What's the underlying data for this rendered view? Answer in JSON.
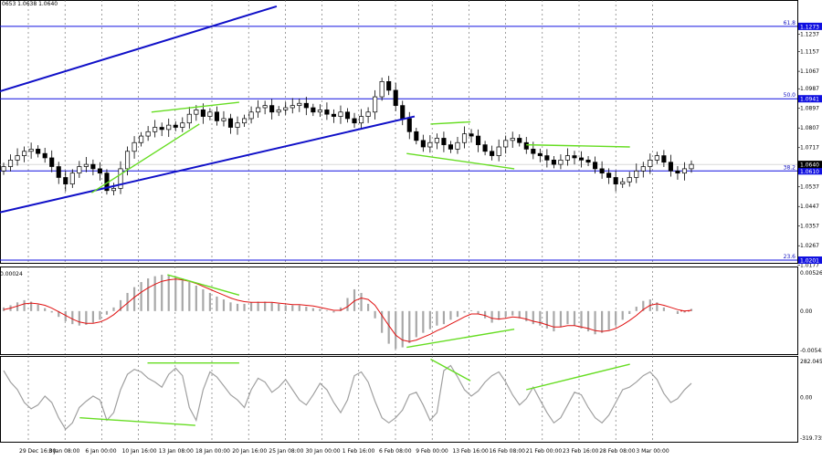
{
  "ohlc_header": "0653 1.0638 1.0640",
  "chart_data": [
    {
      "type": "candlestick",
      "panel": "price",
      "ylim": [
        1.0201,
        1.1327
      ],
      "price_ticks": [
        "1.1237",
        "1.1157",
        "1.1067",
        "1.0987",
        "1.0897",
        "1.0807",
        "1.0717",
        "1.0627",
        "1.0537",
        "1.0447",
        "1.0357",
        "1.0267",
        "1.0177"
      ],
      "price_tick_values": [
        1.1237,
        1.1157,
        1.1067,
        1.0987,
        1.0897,
        1.0807,
        1.0717,
        1.0627,
        1.0537,
        1.0447,
        1.0357,
        1.0267,
        1.0177
      ],
      "fib_levels": [
        {
          "label": "61.8",
          "price_label": "1.1273",
          "value": 1.1273
        },
        {
          "label": "50.0",
          "price_label": "1.0941",
          "value": 1.0941
        },
        {
          "label": "38.2",
          "price_label": "1.0610",
          "value": 1.061
        },
        {
          "label": "23.6",
          "price_label": "1.0201",
          "value": 1.0201
        }
      ],
      "current_price": {
        "label": "1.0640",
        "value": 1.064
      },
      "closes": [
        1.063,
        1.066,
        1.068,
        1.07,
        1.071,
        1.069,
        1.067,
        1.063,
        1.058,
        1.055,
        1.06,
        1.063,
        1.064,
        1.062,
        1.06,
        1.052,
        1.053,
        1.062,
        1.07,
        1.074,
        1.077,
        1.079,
        1.081,
        1.08,
        1.082,
        1.081,
        1.083,
        1.087,
        1.089,
        1.086,
        1.088,
        1.084,
        1.085,
        1.081,
        1.083,
        1.085,
        1.088,
        1.09,
        1.091,
        1.088,
        1.089,
        1.09,
        1.091,
        1.092,
        1.09,
        1.088,
        1.089,
        1.087,
        1.086,
        1.088,
        1.085,
        1.083,
        1.086,
        1.088,
        1.095,
        1.102,
        1.098,
        1.091,
        1.085,
        1.079,
        1.075,
        1.072,
        1.074,
        1.076,
        1.073,
        1.071,
        1.074,
        1.078,
        1.077,
        1.073,
        1.07,
        1.068,
        1.072,
        1.075,
        1.076,
        1.074,
        1.071,
        1.069,
        1.068,
        1.066,
        1.064,
        1.066,
        1.068,
        1.067,
        1.066,
        1.065,
        1.062,
        1.06,
        1.058,
        1.055,
        1.056,
        1.058,
        1.061,
        1.063,
        1.066,
        1.068,
        1.065,
        1.061,
        1.06,
        1.062,
        1.064
      ],
      "trend_channel": {
        "upper": [
          [
            0.0,
            1.0975
          ],
          [
            0.347,
            1.1365
          ]
        ],
        "lower": [
          [
            0.0,
            1.042
          ],
          [
            0.52,
            1.086
          ]
        ]
      },
      "divergence_segments": [
        [
          [
            0.19,
            1.088
          ],
          [
            0.3,
            1.0925
          ]
        ],
        [
          [
            0.115,
            1.051
          ],
          [
            0.25,
            1.0825
          ]
        ],
        [
          [
            0.54,
            1.0825
          ],
          [
            0.59,
            1.0835
          ]
        ],
        [
          [
            0.51,
            1.069
          ],
          [
            0.645,
            1.062
          ]
        ],
        [
          [
            0.66,
            1.073
          ],
          [
            0.79,
            1.072
          ]
        ]
      ],
      "x_tick_labels": [
        "29 Dec 16:00",
        "3 Jan 08:00",
        "6 Jan 00:00",
        "10 Jan 16:00",
        "13 Jan 08:00",
        "18 Jan 00:00",
        "20 Jan 16:00",
        "25 Jan 08:00",
        "30 Jan 00:00",
        "1 Feb 16:00",
        "6 Feb 08:00",
        "9 Feb 00:00",
        "13 Feb 16:00",
        "16 Feb 08:00",
        "21 Feb 00:00",
        "23 Feb 16:00",
        "28 Feb 08:00",
        "3 Mar 00:00"
      ]
    },
    {
      "type": "histogram+line",
      "panel": "macd",
      "ylim": [
        -0.00543,
        0.00526
      ],
      "tick_labels": [
        "0.00526",
        "0.00",
        "-0.00543"
      ],
      "tick_values": [
        0.00526,
        0.0,
        -0.00543
      ],
      "top_left_label": "0.00024",
      "histogram": [
        0.0005,
        0.0008,
        0.0012,
        0.0015,
        0.0013,
        0.0009,
        0.0004,
        -0.0002,
        -0.0008,
        -0.0014,
        -0.0018,
        -0.002,
        -0.0019,
        -0.0016,
        -0.0012,
        -0.0005,
        0.0005,
        0.0015,
        0.0025,
        0.0033,
        0.004,
        0.0045,
        0.0048,
        0.005,
        0.005,
        0.0048,
        0.0045,
        0.004,
        0.0035,
        0.003,
        0.0025,
        0.002,
        0.0016,
        0.0012,
        0.001,
        0.001,
        0.0012,
        0.0013,
        0.0013,
        0.0012,
        0.001,
        0.0008,
        0.0008,
        0.0008,
        0.0006,
        0.0004,
        0.0003,
        0.0001,
        -0.0002,
        0.0005,
        0.0018,
        0.003,
        0.0025,
        0.001,
        -0.001,
        -0.003,
        -0.0045,
        -0.0052,
        -0.005,
        -0.0044,
        -0.0036,
        -0.003,
        -0.0025,
        -0.002,
        -0.0018,
        -0.0012,
        -0.0008,
        -0.0002,
        0.0001,
        -0.0004,
        -0.001,
        -0.0016,
        -0.0012,
        -0.0008,
        -0.0006,
        -0.001,
        -0.0014,
        -0.0018,
        -0.002,
        -0.0024,
        -0.0028,
        -0.0022,
        -0.0018,
        -0.002,
        -0.0024,
        -0.0028,
        -0.0032,
        -0.003,
        -0.0026,
        -0.002,
        -0.0012,
        -0.0004,
        0.0006,
        0.0014,
        0.0016,
        0.0012,
        0.0005,
        0.0,
        -0.0004,
        -0.0002,
        0.0003
      ],
      "signal": [
        0.0002,
        0.0004,
        0.0007,
        0.001,
        0.0011,
        0.001,
        0.0008,
        0.0004,
        -0.0001,
        -0.0006,
        -0.0011,
        -0.0015,
        -0.0017,
        -0.0017,
        -0.0015,
        -0.0011,
        -0.0005,
        0.0003,
        0.0011,
        0.0019,
        0.0026,
        0.0032,
        0.0037,
        0.0041,
        0.0043,
        0.0044,
        0.0043,
        0.0041,
        0.0038,
        0.0034,
        0.003,
        0.0026,
        0.0022,
        0.0018,
        0.0015,
        0.0013,
        0.0012,
        0.0012,
        0.0012,
        0.0012,
        0.0011,
        0.001,
        0.0009,
        0.0009,
        0.0008,
        0.0007,
        0.0005,
        0.0003,
        0.0001,
        0.0001,
        0.0006,
        0.0014,
        0.0018,
        0.0016,
        0.0008,
        -0.0006,
        -0.002,
        -0.0033,
        -0.004,
        -0.0042,
        -0.004,
        -0.0036,
        -0.0032,
        -0.0027,
        -0.0023,
        -0.0018,
        -0.0013,
        -0.0008,
        -0.0004,
        -0.0004,
        -0.0006,
        -0.001,
        -0.0011,
        -0.001,
        -0.0008,
        -0.0009,
        -0.0011,
        -0.0014,
        -0.0016,
        -0.0019,
        -0.0022,
        -0.0022,
        -0.002,
        -0.002,
        -0.0022,
        -0.0024,
        -0.0027,
        -0.0028,
        -0.0027,
        -0.0024,
        -0.0019,
        -0.0013,
        -0.0006,
        0.0002,
        0.0008,
        0.001,
        0.0008,
        0.0005,
        0.0002,
        0.0,
        0.0001
      ],
      "divergence_segments": [
        [
          [
            0.21,
            0.005
          ],
          [
            0.3,
            0.0022
          ]
        ],
        [
          [
            0.51,
            -0.005
          ],
          [
            0.645,
            -0.0025
          ]
        ]
      ]
    },
    {
      "type": "line",
      "panel": "cci",
      "ylim": [
        -319.735,
        282.0457
      ],
      "tick_labels": [
        "282.0457",
        "0.00",
        "-319.735"
      ],
      "tick_values": [
        282.0457,
        0.0,
        -319.735
      ],
      "values": [
        210,
        120,
        60,
        -40,
        -90,
        -60,
        10,
        -40,
        -160,
        -250,
        -200,
        -80,
        -30,
        10,
        -20,
        -180,
        -120,
        60,
        180,
        220,
        200,
        150,
        120,
        80,
        180,
        230,
        170,
        -80,
        -180,
        60,
        200,
        160,
        90,
        20,
        -20,
        -80,
        60,
        150,
        120,
        40,
        80,
        140,
        60,
        -20,
        -60,
        20,
        110,
        60,
        -40,
        -120,
        -20,
        170,
        200,
        120,
        -30,
        -160,
        -200,
        -160,
        -100,
        20,
        40,
        -60,
        -180,
        -120,
        210,
        250,
        160,
        60,
        10,
        50,
        120,
        170,
        200,
        120,
        20,
        -60,
        -10,
        80,
        -20,
        -120,
        -200,
        -160,
        -60,
        40,
        20,
        -80,
        -160,
        -200,
        -140,
        -40,
        60,
        80,
        120,
        170,
        200,
        140,
        30,
        -40,
        -10,
        60,
        110
      ],
      "divergence_segments": [
        [
          [
            0.1,
            -160
          ],
          [
            0.245,
            -220
          ]
        ],
        [
          [
            0.185,
            270
          ],
          [
            0.3,
            270
          ]
        ],
        [
          [
            0.54,
            300
          ],
          [
            0.59,
            130
          ]
        ],
        [
          [
            0.66,
            60
          ],
          [
            0.79,
            260
          ]
        ]
      ]
    }
  ]
}
